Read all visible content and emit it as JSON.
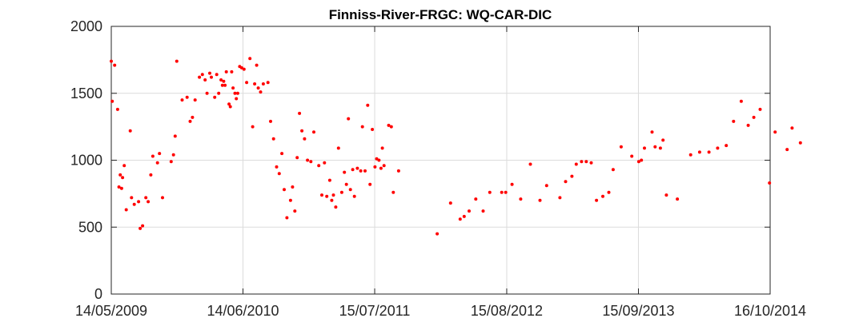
{
  "chart_data": {
    "type": "scatter",
    "title": "Finniss-River-FRGC: WQ-CAR-DIC",
    "xlabel": "",
    "ylabel": "",
    "x_axis": {
      "type": "date",
      "range": [
        "2009-05-14",
        "2014-10-16"
      ],
      "ticks": [
        {
          "value": "2009-05-14",
          "label": "14/05/2009"
        },
        {
          "value": "2010-06-14",
          "label": "14/06/2010"
        },
        {
          "value": "2011-07-15",
          "label": "15/07/2011"
        },
        {
          "value": "2012-08-15",
          "label": "15/08/2012"
        },
        {
          "value": "2013-09-15",
          "label": "15/09/2013"
        },
        {
          "value": "2014-10-16",
          "label": "16/10/2014"
        }
      ]
    },
    "y_axis": {
      "range": [
        0,
        2000
      ],
      "ticks": [
        {
          "value": 0,
          "label": "0"
        },
        {
          "value": 500,
          "label": "500"
        },
        {
          "value": 1000,
          "label": "1000"
        },
        {
          "value": 1500,
          "label": "1500"
        },
        {
          "value": 2000,
          "label": "2000"
        }
      ]
    },
    "grid": true,
    "marker_color": "#ff0000",
    "series": [
      {
        "points": [
          [
            "2009-05-14",
            1740
          ],
          [
            "2009-05-17",
            1440
          ],
          [
            "2009-05-24",
            1710
          ],
          [
            "2009-06-02",
            1380
          ],
          [
            "2009-06-06",
            800
          ],
          [
            "2009-06-10",
            890
          ],
          [
            "2009-06-14",
            790
          ],
          [
            "2009-06-17",
            870
          ],
          [
            "2009-06-22",
            960
          ],
          [
            "2009-06-28",
            630
          ],
          [
            "2009-07-10",
            1220
          ],
          [
            "2009-07-14",
            720
          ],
          [
            "2009-07-22",
            670
          ],
          [
            "2009-08-04",
            690
          ],
          [
            "2009-08-09",
            490
          ],
          [
            "2009-08-16",
            510
          ],
          [
            "2009-08-26",
            720
          ],
          [
            "2009-09-02",
            690
          ],
          [
            "2009-09-10",
            890
          ],
          [
            "2009-09-16",
            1030
          ],
          [
            "2009-09-30",
            980
          ],
          [
            "2009-10-06",
            1050
          ],
          [
            "2009-10-15",
            720
          ],
          [
            "2009-11-10",
            990
          ],
          [
            "2009-11-17",
            1040
          ],
          [
            "2009-11-22",
            1180
          ],
          [
            "2009-11-27",
            1740
          ],
          [
            "2009-12-13",
            1450
          ],
          [
            "2009-12-28",
            1470
          ],
          [
            "2010-01-06",
            1290
          ],
          [
            "2010-01-13",
            1320
          ],
          [
            "2010-01-21",
            1450
          ],
          [
            "2010-02-03",
            1620
          ],
          [
            "2010-02-12",
            1640
          ],
          [
            "2010-02-20",
            1600
          ],
          [
            "2010-02-26",
            1500
          ],
          [
            "2010-03-06",
            1650
          ],
          [
            "2010-03-11",
            1620
          ],
          [
            "2010-03-21",
            1470
          ],
          [
            "2010-03-27",
            1640
          ],
          [
            "2010-04-02",
            1500
          ],
          [
            "2010-04-09",
            1600
          ],
          [
            "2010-04-13",
            1560
          ],
          [
            "2010-04-17",
            1590
          ],
          [
            "2010-04-21",
            1560
          ],
          [
            "2010-04-25",
            1660
          ],
          [
            "2010-05-03",
            1420
          ],
          [
            "2010-05-07",
            1400
          ],
          [
            "2010-05-11",
            1660
          ],
          [
            "2010-05-15",
            1540
          ],
          [
            "2010-05-21",
            1500
          ],
          [
            "2010-05-25",
            1460
          ],
          [
            "2010-05-29",
            1500
          ],
          [
            "2010-06-04",
            1700
          ],
          [
            "2010-06-10",
            1690
          ],
          [
            "2010-06-17",
            1680
          ],
          [
            "2010-06-25",
            1580
          ],
          [
            "2010-07-05",
            1760
          ],
          [
            "2010-07-13",
            1250
          ],
          [
            "2010-07-19",
            1570
          ],
          [
            "2010-07-25",
            1710
          ],
          [
            "2010-07-30",
            1540
          ],
          [
            "2010-08-06",
            1510
          ],
          [
            "2010-08-14",
            1570
          ],
          [
            "2010-08-28",
            1580
          ],
          [
            "2010-09-05",
            1290
          ],
          [
            "2010-09-14",
            1160
          ],
          [
            "2010-09-23",
            950
          ],
          [
            "2010-10-01",
            900
          ],
          [
            "2010-10-09",
            1050
          ],
          [
            "2010-10-16",
            780
          ],
          [
            "2010-10-24",
            570
          ],
          [
            "2010-11-04",
            700
          ],
          [
            "2010-11-10",
            800
          ],
          [
            "2010-11-17",
            620
          ],
          [
            "2010-11-24",
            1020
          ],
          [
            "2010-12-01",
            1350
          ],
          [
            "2010-12-08",
            1220
          ],
          [
            "2010-12-16",
            1160
          ],
          [
            "2010-12-25",
            1000
          ],
          [
            "2011-01-04",
            990
          ],
          [
            "2011-01-13",
            1210
          ],
          [
            "2011-01-28",
            960
          ],
          [
            "2011-02-06",
            740
          ],
          [
            "2011-02-14",
            980
          ],
          [
            "2011-02-21",
            730
          ],
          [
            "2011-03-02",
            850
          ],
          [
            "2011-03-08",
            700
          ],
          [
            "2011-03-13",
            740
          ],
          [
            "2011-03-20",
            650
          ],
          [
            "2011-03-28",
            1090
          ],
          [
            "2011-04-07",
            760
          ],
          [
            "2011-04-15",
            910
          ],
          [
            "2011-04-21",
            820
          ],
          [
            "2011-04-27",
            1310
          ],
          [
            "2011-05-03",
            780
          ],
          [
            "2011-05-10",
            930
          ],
          [
            "2011-05-15",
            730
          ],
          [
            "2011-05-24",
            940
          ],
          [
            "2011-06-03",
            920
          ],
          [
            "2011-06-08",
            1250
          ],
          [
            "2011-06-16",
            920
          ],
          [
            "2011-06-24",
            1410
          ],
          [
            "2011-07-01",
            820
          ],
          [
            "2011-07-08",
            1230
          ],
          [
            "2011-07-16",
            950
          ],
          [
            "2011-07-21",
            1010
          ],
          [
            "2011-07-28",
            1000
          ],
          [
            "2011-08-03",
            940
          ],
          [
            "2011-08-07",
            1090
          ],
          [
            "2011-08-12",
            960
          ],
          [
            "2011-08-26",
            1260
          ],
          [
            "2011-09-03",
            1250
          ],
          [
            "2011-09-09",
            760
          ],
          [
            "2011-09-25",
            920
          ],
          [
            "2012-01-19",
            450
          ],
          [
            "2012-02-28",
            680
          ],
          [
            "2012-03-28",
            560
          ],
          [
            "2012-04-09",
            580
          ],
          [
            "2012-04-24",
            620
          ],
          [
            "2012-05-14",
            710
          ],
          [
            "2012-06-05",
            620
          ],
          [
            "2012-06-25",
            760
          ],
          [
            "2012-07-31",
            760
          ],
          [
            "2012-08-12",
            760
          ],
          [
            "2012-08-31",
            820
          ],
          [
            "2012-09-26",
            710
          ],
          [
            "2012-10-25",
            970
          ],
          [
            "2012-11-23",
            700
          ],
          [
            "2012-12-13",
            810
          ],
          [
            "2013-01-22",
            720
          ],
          [
            "2013-02-08",
            840
          ],
          [
            "2013-02-27",
            880
          ],
          [
            "2013-03-12",
            970
          ],
          [
            "2013-03-28",
            990
          ],
          [
            "2013-04-11",
            990
          ],
          [
            "2013-04-26",
            980
          ],
          [
            "2013-05-12",
            700
          ],
          [
            "2013-05-31",
            730
          ],
          [
            "2013-06-18",
            760
          ],
          [
            "2013-07-01",
            930
          ],
          [
            "2013-07-25",
            1100
          ],
          [
            "2013-08-26",
            1030
          ],
          [
            "2013-09-16",
            990
          ],
          [
            "2013-09-24",
            1000
          ],
          [
            "2013-10-03",
            1090
          ],
          [
            "2013-10-26",
            1210
          ],
          [
            "2013-11-04",
            1100
          ],
          [
            "2013-11-20",
            1090
          ],
          [
            "2013-11-28",
            1150
          ],
          [
            "2013-12-08",
            740
          ],
          [
            "2014-01-10",
            710
          ],
          [
            "2014-02-19",
            1040
          ],
          [
            "2014-03-18",
            1060
          ],
          [
            "2014-04-15",
            1060
          ],
          [
            "2014-05-11",
            1090
          ],
          [
            "2014-06-06",
            1110
          ],
          [
            "2014-06-28",
            1290
          ],
          [
            "2014-07-21",
            1440
          ],
          [
            "2014-08-11",
            1260
          ],
          [
            "2014-08-28",
            1320
          ],
          [
            "2014-09-16",
            1380
          ],
          [
            "2014-10-14",
            830
          ],
          [
            "2014-10-31",
            1210
          ],
          [
            "2014-12-06",
            1080
          ],
          [
            "2014-12-21",
            1240
          ],
          [
            "2015-01-15",
            1130
          ]
        ]
      }
    ]
  }
}
